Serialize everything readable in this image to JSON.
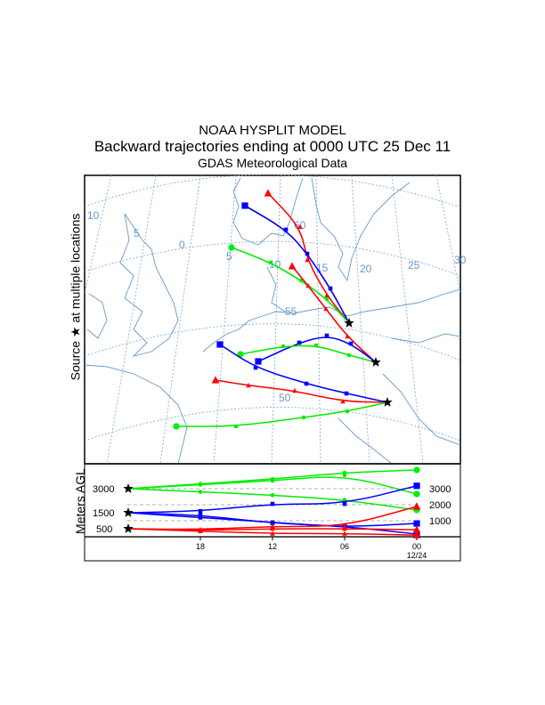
{
  "header": {
    "model": "NOAA HYSPLIT MODEL",
    "subtitle": "Backward trajectories ending at 0000 UTC 25 Dec 11",
    "met_data": "GDAS Meteorological Data"
  },
  "map": {
    "side_label": "Source ★ at multiple locations",
    "source_icon": "star-icon",
    "lon_labels": [
      "10",
      "5",
      "0",
      "5",
      "10",
      "15",
      "20",
      "25",
      "30"
    ],
    "lat_labels": [
      "60",
      "55",
      "50"
    ],
    "colors": {
      "low": "#ff0000",
      "mid": "#0000ff",
      "high": "#00ee00",
      "grid": "#6699cc"
    }
  },
  "profile": {
    "y_label": "Meters AGL",
    "start_heights": [
      "3000",
      "1500",
      "500"
    ],
    "right_ticks": [
      "3000",
      "2000",
      "1000"
    ],
    "time_ticks": [
      "18",
      "12",
      "06",
      "00"
    ],
    "date_label": "12/24",
    "hours": [
      0,
      -6,
      -12,
      -18,
      -24
    ],
    "series": [
      {
        "color": "#00ee00",
        "marker": "circle",
        "heights": [
          3000,
          3300,
          3600,
          4000,
          4170
        ]
      },
      {
        "color": "#00ee00",
        "marker": "circle",
        "heights": [
          3000,
          3250,
          3500,
          3850,
          2670
        ]
      },
      {
        "color": "#00ee00",
        "marker": "circle",
        "heights": [
          3000,
          2800,
          2600,
          2300,
          1670
        ]
      },
      {
        "color": "#0000ff",
        "marker": "square",
        "heights": [
          1500,
          1600,
          2050,
          2050,
          3180
        ]
      },
      {
        "color": "#0000ff",
        "marker": "square",
        "heights": [
          1500,
          1200,
          900,
          600,
          830
        ]
      },
      {
        "color": "#0000ff",
        "marker": "square",
        "heights": [
          1500,
          1350,
          850,
          650,
          170
        ]
      },
      {
        "color": "#ff0000",
        "marker": "triangle",
        "heights": [
          500,
          450,
          650,
          650,
          1890
        ]
      },
      {
        "color": "#ff0000",
        "marker": "triangle",
        "heights": [
          500,
          400,
          500,
          500,
          440
        ]
      },
      {
        "color": "#ff0000",
        "marker": "triangle",
        "heights": [
          500,
          350,
          200,
          200,
          100
        ]
      }
    ]
  }
}
